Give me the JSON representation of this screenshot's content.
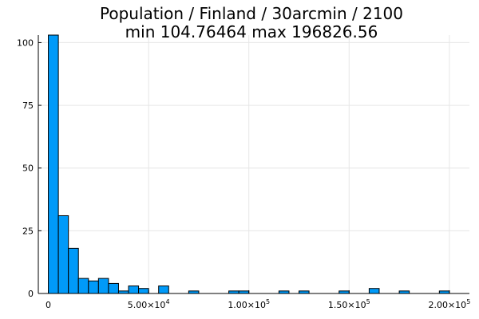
{
  "chart_data": {
    "type": "bar",
    "title": "Population / Finland / 30arcmin / 2100",
    "subtitle": "min 104.76464  max 196826.56",
    "xlabel": "",
    "ylabel": "",
    "bin_width": 5000,
    "xlim": [
      -5000,
      210000
    ],
    "ylim": [
      0,
      103
    ],
    "grid": true,
    "legend": "none",
    "bar_color": "#009af9",
    "x_ticks": [
      {
        "value": 0,
        "label": "0",
        "exp": ""
      },
      {
        "value": 50000,
        "label": "5.00×10",
        "exp": "4"
      },
      {
        "value": 100000,
        "label": "1.00×10",
        "exp": "5"
      },
      {
        "value": 150000,
        "label": "1.50×10",
        "exp": "5"
      },
      {
        "value": 200000,
        "label": "2.00×10",
        "exp": "5"
      }
    ],
    "y_ticks": [
      {
        "value": 0,
        "label": "0"
      },
      {
        "value": 25,
        "label": "25"
      },
      {
        "value": 50,
        "label": "50"
      },
      {
        "value": 75,
        "label": "75"
      },
      {
        "value": 100,
        "label": "100"
      }
    ],
    "bins": [
      {
        "start": 0,
        "count": 103
      },
      {
        "start": 5000,
        "count": 31
      },
      {
        "start": 10000,
        "count": 18
      },
      {
        "start": 15000,
        "count": 6
      },
      {
        "start": 20000,
        "count": 5
      },
      {
        "start": 25000,
        "count": 6
      },
      {
        "start": 30000,
        "count": 4
      },
      {
        "start": 35000,
        "count": 1
      },
      {
        "start": 40000,
        "count": 3
      },
      {
        "start": 45000,
        "count": 2
      },
      {
        "start": 55000,
        "count": 3
      },
      {
        "start": 70000,
        "count": 1
      },
      {
        "start": 90000,
        "count": 1
      },
      {
        "start": 95000,
        "count": 1
      },
      {
        "start": 115000,
        "count": 1
      },
      {
        "start": 125000,
        "count": 1
      },
      {
        "start": 145000,
        "count": 1
      },
      {
        "start": 160000,
        "count": 2
      },
      {
        "start": 175000,
        "count": 1
      },
      {
        "start": 195000,
        "count": 1
      }
    ]
  }
}
